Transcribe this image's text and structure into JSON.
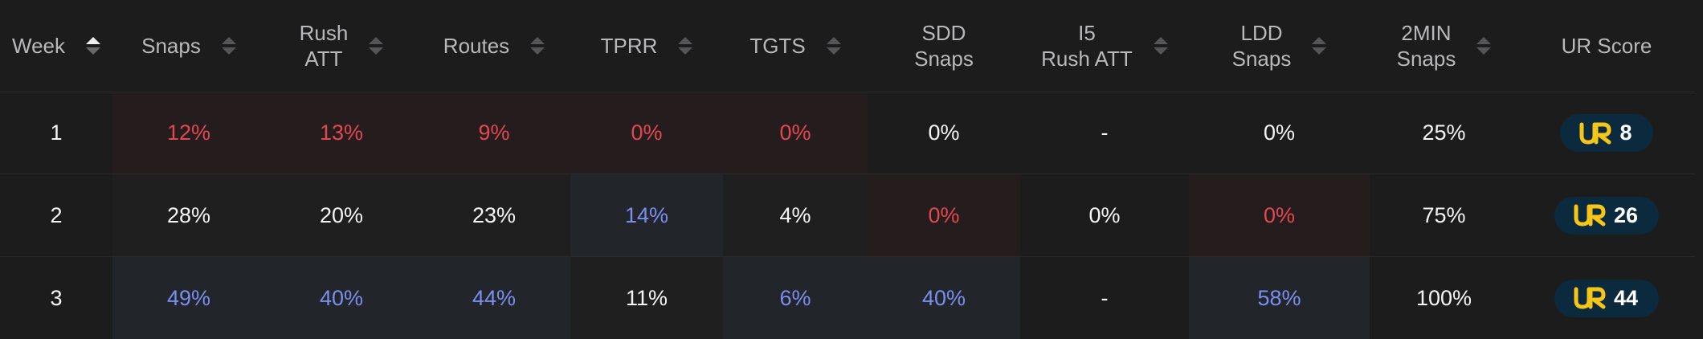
{
  "headers": [
    {
      "label": "Week",
      "sort": "asc"
    },
    {
      "label": "Snaps",
      "sort": "none"
    },
    {
      "label": "Rush\nATT",
      "sort": "none"
    },
    {
      "label": "Routes",
      "sort": "none"
    },
    {
      "label": "TPRR",
      "sort": "none"
    },
    {
      "label": "TGTS",
      "sort": "none"
    },
    {
      "label": "SDD\nSnaps",
      "sort": null
    },
    {
      "label": "I5\nRush ATT",
      "sort": "none"
    },
    {
      "label": "LDD\nSnaps",
      "sort": "none"
    },
    {
      "label": "2MIN\nSnaps",
      "sort": "none"
    },
    {
      "label": "UR Score",
      "sort": null
    }
  ],
  "rows": [
    {
      "week": "1",
      "snaps": "12%",
      "rush_att": "13%",
      "routes": "9%",
      "tprr": "0%",
      "tgts": "0%",
      "sdd_snaps": "0%",
      "i5_rush_att": "-",
      "ldd_snaps": "0%",
      "two_min_snaps": "25%",
      "ur_score": "8"
    },
    {
      "week": "2",
      "snaps": "28%",
      "rush_att": "20%",
      "routes": "23%",
      "tprr": "14%",
      "tgts": "4%",
      "sdd_snaps": "0%",
      "i5_rush_att": "0%",
      "ldd_snaps": "0%",
      "two_min_snaps": "75%",
      "ur_score": "26"
    },
    {
      "week": "3",
      "snaps": "49%",
      "rush_att": "40%",
      "routes": "44%",
      "tprr": "11%",
      "tgts": "6%",
      "sdd_snaps": "40%",
      "i5_rush_att": "-",
      "ldd_snaps": "58%",
      "two_min_snaps": "100%",
      "ur_score": "44"
    }
  ],
  "colors": {
    "negative_text": "#e34850",
    "positive_text": "#7b8ef0",
    "logo_yellow": "#f5c518",
    "score_pill": "#0c2a3d"
  },
  "icons": {
    "score_logo": "ur-logo-icon",
    "sort": "sort-arrows-icon"
  }
}
